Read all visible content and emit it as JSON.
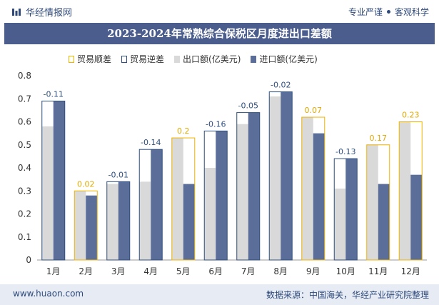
{
  "header": {
    "brand": "华经情报网",
    "tagline_left": "专业严谨",
    "tagline_right": "客观科学"
  },
  "title": "2023-2024年常熟综合保税区月度进出口差额",
  "footer": {
    "url": "www.huaon.com",
    "source": "数据来源：中国海关，华经产业研究院整理"
  },
  "colors": {
    "export": "#d9d9d9",
    "import": "#5b6e99",
    "surplus": "#f0b400",
    "deficit": "#2e4f7f",
    "title_bg": "#4b5d8c"
  },
  "chart_data": {
    "type": "bar",
    "categories": [
      "1月",
      "2月",
      "3月",
      "4月",
      "5月",
      "6月",
      "7月",
      "8月",
      "9月",
      "10月",
      "11月",
      "12月"
    ],
    "series": [
      {
        "name": "出口额(亿美元)",
        "values": [
          0.58,
          0.3,
          0.33,
          0.34,
          0.53,
          0.4,
          0.59,
          0.71,
          0.62,
          0.31,
          0.5,
          0.6
        ]
      },
      {
        "name": "进口额(亿美元)",
        "values": [
          0.69,
          0.28,
          0.34,
          0.48,
          0.33,
          0.56,
          0.64,
          0.73,
          0.55,
          0.44,
          0.33,
          0.37
        ]
      }
    ],
    "balance_labels": [
      "-0.11",
      "0.02",
      "-0.01",
      "-0.14",
      "0.2",
      "-0.16",
      "-0.05",
      "-0.02",
      "0.07",
      "-0.13",
      "0.17",
      "0.23"
    ],
    "legend": [
      "贸易顺差",
      "贸易逆差",
      "出口额(亿美元)",
      "进口额(亿美元)"
    ],
    "yticks": [
      "0",
      "0.1",
      "0.2",
      "0.3",
      "0.4",
      "0.5",
      "0.6",
      "0.7",
      "0.8"
    ],
    "ylim": [
      0,
      0.8
    ]
  }
}
